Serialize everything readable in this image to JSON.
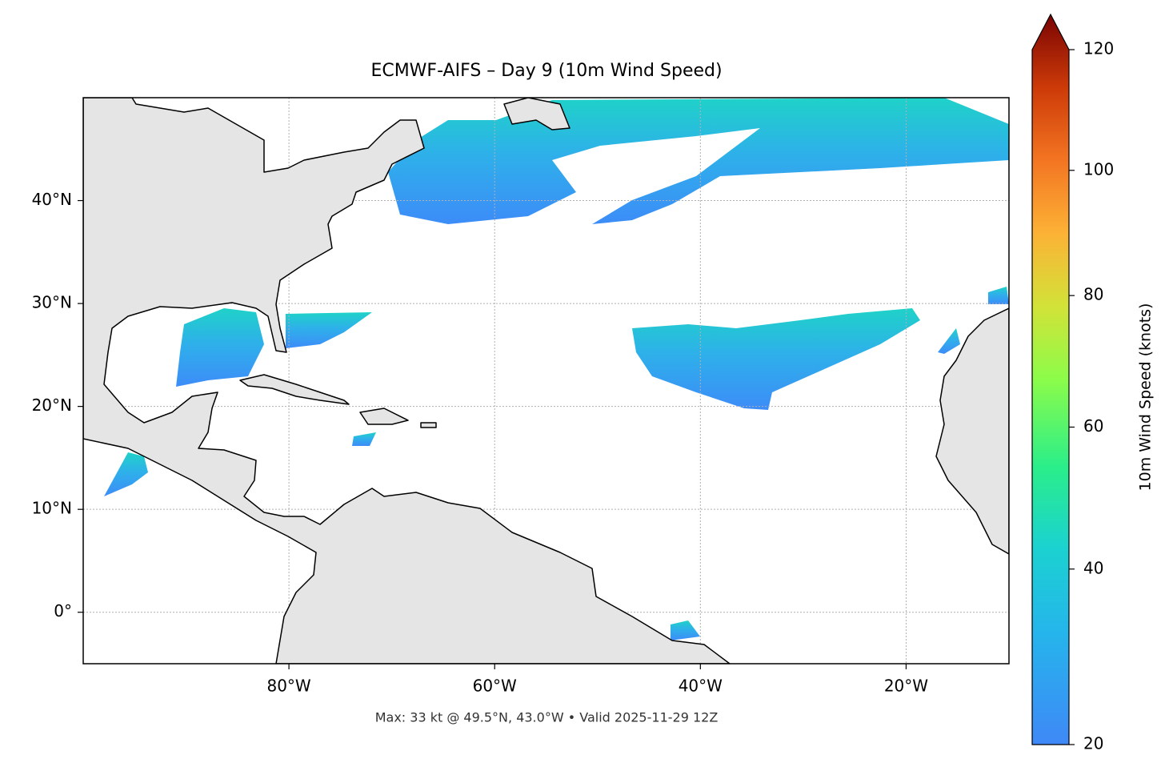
{
  "chart_data": {
    "type": "map",
    "title": "ECMWF-AIFS – Day 9 (10m Wind Speed)",
    "annotation": "Max: 33 kt @ 49.5°N, 43.0°W • Valid 2025-11-29 12Z",
    "xlim": [
      -100,
      -10
    ],
    "xticks": [
      {
        "value": -80,
        "label": "80°W"
      },
      {
        "value": -60,
        "label": "60°W"
      },
      {
        "value": -40,
        "label": "40°W"
      },
      {
        "value": -20,
        "label": "20°W"
      }
    ],
    "ylim": [
      -5,
      50
    ],
    "yticks": [
      {
        "value": 0,
        "label": "0°"
      },
      {
        "value": 10,
        "label": "10°N"
      },
      {
        "value": 20,
        "label": "20°N"
      },
      {
        "value": 30,
        "label": "30°N"
      },
      {
        "value": 40,
        "label": "40°N"
      }
    ],
    "grid": true,
    "colorbar": {
      "label": "10m Wind Speed (knots)",
      "lim": [
        20,
        120
      ],
      "ticks": [
        20,
        40,
        60,
        80,
        100,
        120
      ],
      "scale": "power",
      "gamma": 0.855,
      "extend": "max"
    }
  }
}
